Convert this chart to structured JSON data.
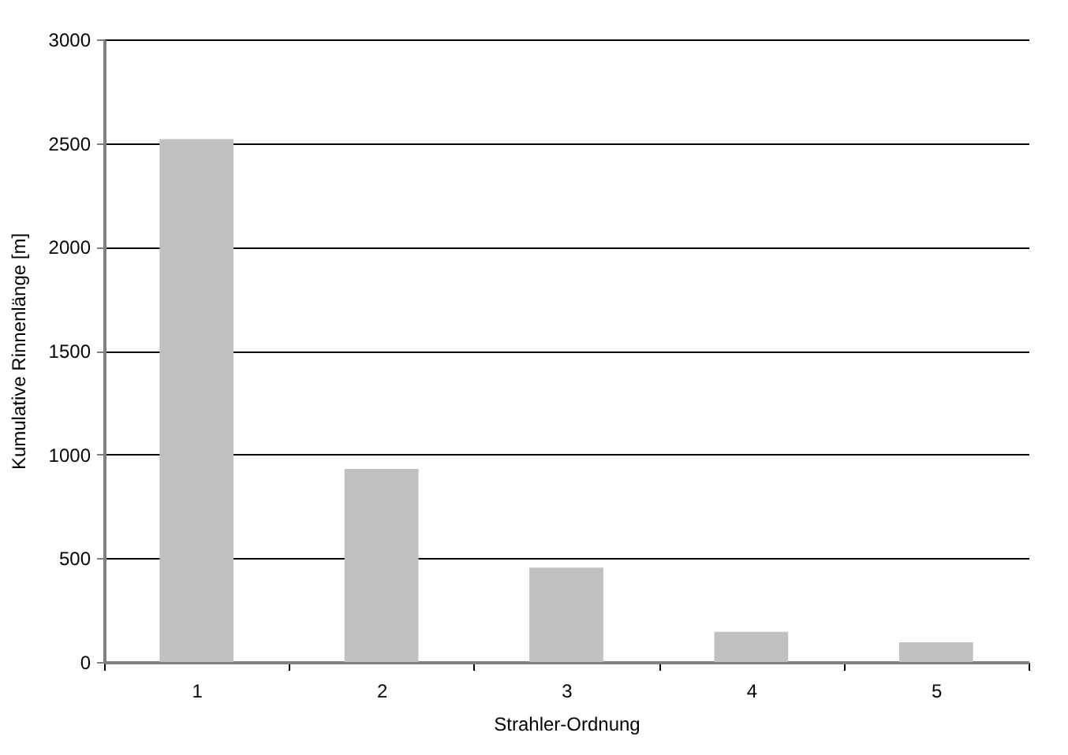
{
  "chart_data": {
    "type": "bar",
    "xlabel": "Strahler-Ordnung",
    "ylabel": "Kumulative Rinnenlänge [m]",
    "categories": [
      "1",
      "2",
      "3",
      "4",
      "5"
    ],
    "values": [
      2520,
      930,
      455,
      145,
      95
    ],
    "color": "#c0c0c0",
    "ylim": [
      0,
      3000
    ],
    "yticks": [
      0,
      500,
      1000,
      1500,
      2000,
      2500,
      3000
    ],
    "grid": "y"
  }
}
